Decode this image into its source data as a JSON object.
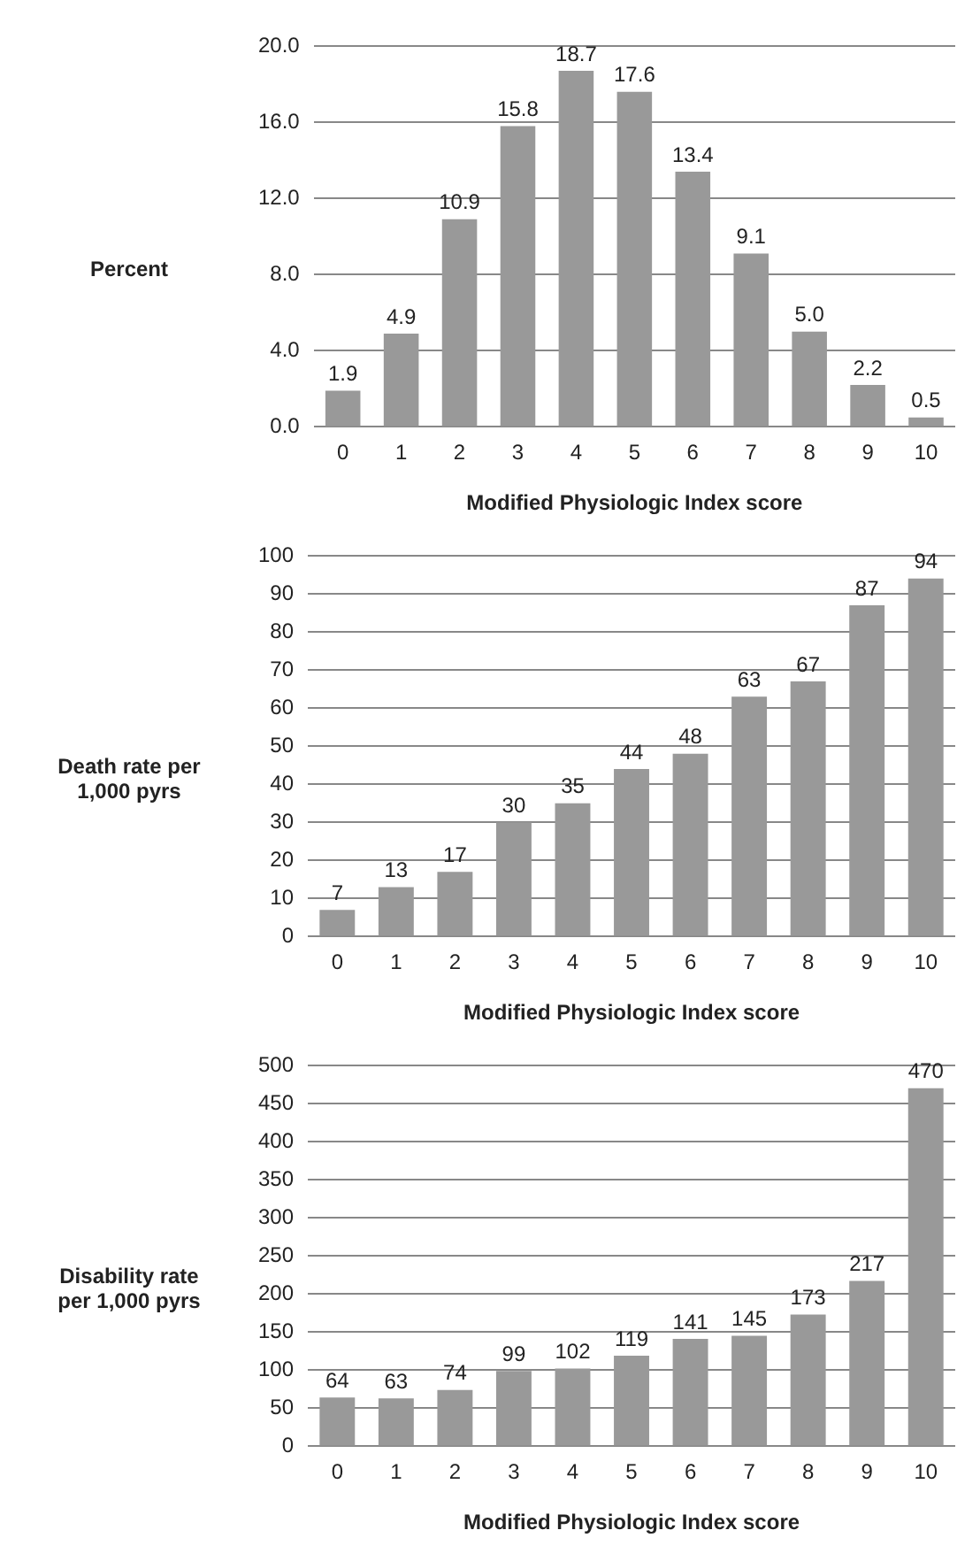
{
  "chart_data": [
    {
      "type": "bar",
      "xlabel": "Modified Physiologic Index score",
      "ylabel": "Percent",
      "categories": [
        "0",
        "1",
        "2",
        "3",
        "4",
        "5",
        "6",
        "7",
        "8",
        "9",
        "10"
      ],
      "values": [
        1.9,
        4.9,
        10.9,
        15.8,
        18.7,
        17.6,
        13.4,
        9.1,
        5.0,
        2.2,
        0.5
      ],
      "value_labels": [
        "1.9",
        "4.9",
        "10.9",
        "15.8",
        "18.7",
        "17.6",
        "13.4",
        "9.1",
        "5.0",
        "2.2",
        "0.5"
      ],
      "color": "#999999",
      "ylim": [
        0,
        20
      ],
      "yticks": [
        {
          "value": 0,
          "label": "0.0"
        },
        {
          "value": 4,
          "label": "4.0"
        },
        {
          "value": 8,
          "label": "8.0"
        },
        {
          "value": 12,
          "label": "12.0"
        },
        {
          "value": 16,
          "label": "16.0"
        },
        {
          "value": 20,
          "label": "20.0"
        }
      ],
      "grid": "y",
      "legend": false
    },
    {
      "type": "bar",
      "xlabel": "Modified Physiologic Index score",
      "ylabel": "Death rate per 1,000 pyrs",
      "categories": [
        "0",
        "1",
        "2",
        "3",
        "4",
        "5",
        "6",
        "7",
        "8",
        "9",
        "10"
      ],
      "values": [
        7,
        13,
        17,
        30,
        35,
        44,
        48,
        63,
        67,
        87,
        94
      ],
      "data_labels": true,
      "color": "#999999",
      "ylim": [
        0,
        100
      ],
      "yticks": [
        0,
        10,
        20,
        30,
        40,
        50,
        60,
        70,
        80,
        90,
        100
      ],
      "grid": "y",
      "legend": false
    },
    {
      "type": "bar",
      "xlabel": "Modified Physiologic Index score",
      "ylabel": "Disability rate per 1,000 pyrs",
      "categories": [
        "0",
        "1",
        "2",
        "3",
        "4",
        "5",
        "6",
        "7",
        "8",
        "9",
        "10"
      ],
      "values": [
        64,
        63,
        74,
        99,
        102,
        119,
        141,
        145,
        173,
        217,
        470
      ],
      "data_labels": true,
      "color": "#999999",
      "ylim": [
        0,
        500
      ],
      "yticks": [
        0,
        50,
        100,
        150,
        200,
        250,
        300,
        350,
        400,
        450,
        500
      ],
      "grid": "y",
      "legend": false
    }
  ]
}
